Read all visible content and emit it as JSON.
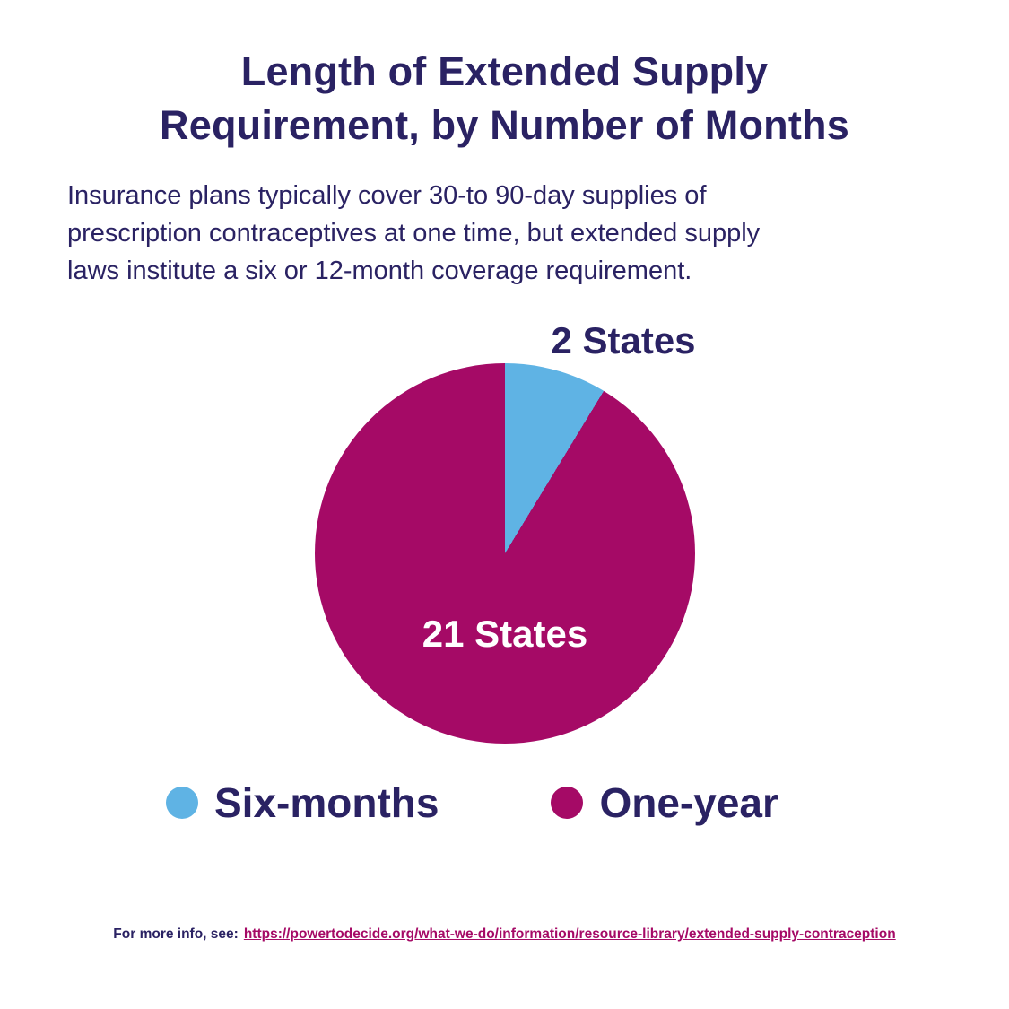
{
  "title": {
    "line1": "Length of Extended Supply",
    "line2": "Requirement, by Number of Months"
  },
  "subtitle_lines": [
    "Insurance plans typically cover 30-to 90-day supplies of",
    "prescription contraceptives at one time, but extended supply",
    "laws institute a six or 12-month coverage requirement."
  ],
  "chart_data": {
    "type": "pie",
    "title": "Length of Extended Supply Requirement, by Number of Months",
    "total_states": 23,
    "slices": [
      {
        "label": "Six-months",
        "value": 2,
        "display_label": "2 States",
        "color": "#5FB3E4"
      },
      {
        "label": "One-year",
        "value": 21,
        "display_label": "21 States",
        "color": "#A50A66"
      }
    ],
    "start_angle_deg": 0,
    "direction": "clockwise",
    "legend_position": "bottom"
  },
  "footer": {
    "prefix": "For more info, see:",
    "link": "https://powertodecide.org/what-we-do/information/resource-library/extended-supply-contraception"
  },
  "colors": {
    "navy": "#2A2263",
    "magenta": "#A50A66",
    "blue": "#5FB3E4",
    "pie_inner_label": "#FFFFFF",
    "background": "#FFFFFF"
  }
}
